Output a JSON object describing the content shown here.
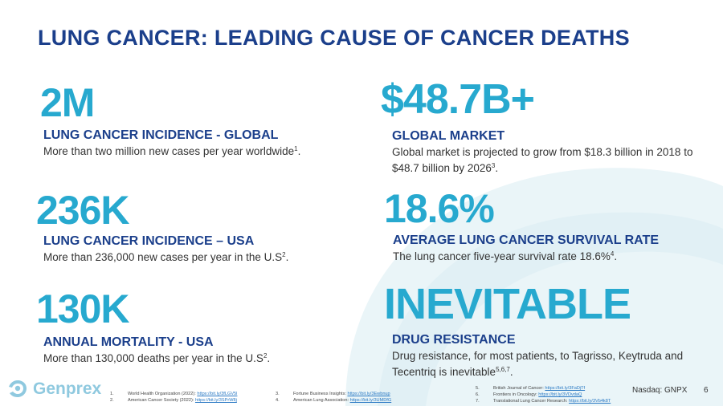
{
  "title": "LUNG CANCER: LEADING CAUSE OF CANCER DEATHS",
  "stats": [
    {
      "value": "2M",
      "label": "LUNG CANCER INCIDENCE - GLOBAL",
      "desc": "More than two million new cases per year worldwide",
      "sup": "1",
      "tail": "."
    },
    {
      "value": "236K",
      "label": "LUNG CANCER INCIDENCE – USA",
      "desc": "More than 236,000 new cases per year in the U.S",
      "sup": "2",
      "tail": "."
    },
    {
      "value": "130K",
      "label": "ANNUAL MORTALITY - USA",
      "desc": "More than 130,000 deaths per year in the U.S",
      "sup": "2",
      "tail": "."
    },
    {
      "value": "$48.7B+",
      "label": "GLOBAL MARKET",
      "desc": "Global market is projected to grow from $18.3 billion in 2018 to $48.7 billion by 2026",
      "sup": "3",
      "tail": "."
    },
    {
      "value": "18.6%",
      "label": "AVERAGE LUNG CANCER SURVIVAL RATE",
      "desc": "The lung cancer five-year survival rate 18.6%",
      "sup": "4",
      "tail": "."
    },
    {
      "value": "INEVITABLE",
      "label": "DRUG RESISTANCE",
      "desc": "Drug resistance, for most patients, to Tagrisso, Keytruda and Tecentriq is inevitable",
      "sup": "5,6,7",
      "tail": "."
    }
  ],
  "logo": {
    "name": "Genprex"
  },
  "references": {
    "col1": [
      {
        "num": "1.",
        "text": "World Health Organization (2022):",
        "link": "https://bit.ly/3fLGV5l"
      },
      {
        "num": "2.",
        "text": "American Cancer Society (2022):",
        "link": "https://bit.ly/3SPrW8j"
      }
    ],
    "col2": [
      {
        "num": "3.",
        "text": "Fortune Business Insights:",
        "link": "https://bit.ly/3Ewbnup"
      },
      {
        "num": "4.",
        "text": "American Lung Association:",
        "link": "https://bit.ly/3UMDfG"
      }
    ],
    "col3": [
      {
        "num": "5.",
        "text": "British Journal of Cancer:",
        "link": "https://bit.ly/3FaDjTf"
      },
      {
        "num": "6.",
        "text": "Frontiers in Oncology:",
        "link": "https://bit.ly/3VDvdaQ"
      },
      {
        "num": "7.",
        "text": "Translational Lung Cancer Research:",
        "link": "https://bit.ly/3Vb4k8T"
      }
    ]
  },
  "footer": {
    "nasdaq": "Nasdaq: GNPX",
    "page": "6"
  },
  "colors": {
    "title": "#1b3f8b",
    "accent": "#27a9cf",
    "arc": "#eaf5f8"
  }
}
